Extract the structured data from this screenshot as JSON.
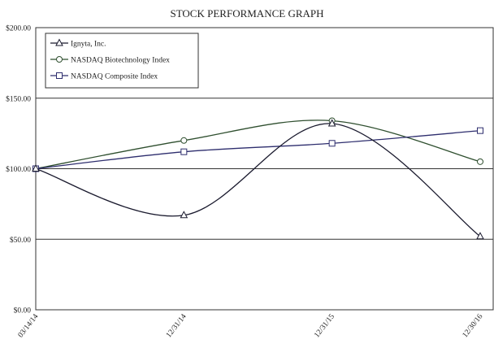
{
  "chart_data": {
    "type": "line",
    "title": "STOCK PERFORMANCE GRAPH",
    "xlabel": "",
    "ylabel": "",
    "categories": [
      "03/14/14",
      "12/31/14",
      "12/31/15",
      "12/30/16"
    ],
    "y_tick_labels": [
      "$0.00",
      "$50.00",
      "$100.00",
      "$150.00",
      "$200.00"
    ],
    "ylim": [
      0,
      200
    ],
    "y_ticks": [
      0,
      50,
      100,
      150,
      200
    ],
    "grid": true,
    "legend_position": "top-left",
    "series": [
      {
        "name": "Ignyta, Inc.",
        "values": [
          100,
          67,
          132,
          52
        ],
        "marker": "triangle",
        "color": "#1a1a2e"
      },
      {
        "name": "NASDAQ Biotechnology Index",
        "values": [
          100,
          120,
          134,
          105
        ],
        "marker": "circle",
        "color": "#2f4f2f"
      },
      {
        "name": "NASDAQ Composite Index",
        "values": [
          100,
          112,
          118,
          127
        ],
        "marker": "square",
        "color": "#2e2e6e"
      }
    ]
  }
}
